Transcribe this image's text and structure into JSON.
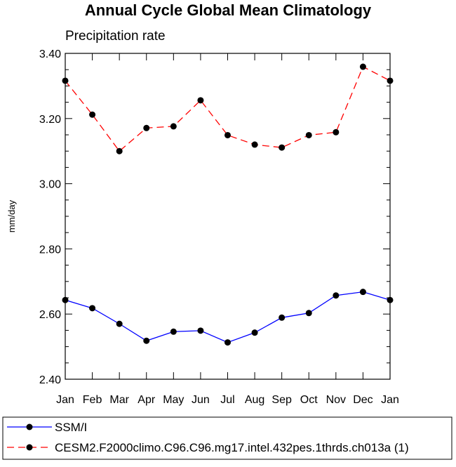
{
  "chart_data": {
    "type": "line",
    "title": "Annual Cycle Global Mean Climatology",
    "subtitle": "Precipitation rate",
    "xlabel": "",
    "ylabel": "mm/day",
    "categories": [
      "Jan",
      "Feb",
      "Mar",
      "Apr",
      "May",
      "Jun",
      "Jul",
      "Aug",
      "Sep",
      "Oct",
      "Nov",
      "Dec",
      "Jan"
    ],
    "ylim": [
      2.4,
      3.4
    ],
    "yticks": [
      "2.40",
      "2.60",
      "2.80",
      "3.00",
      "3.20",
      "3.40"
    ],
    "ytick_values": [
      2.4,
      2.6,
      2.8,
      3.0,
      3.2,
      3.4
    ],
    "legend_position": "bottom",
    "series": [
      {
        "name": "SSM/I",
        "color": "#0000ff",
        "line_style": "solid",
        "marker": "filled-circle",
        "values": [
          2.643,
          2.618,
          2.57,
          2.518,
          2.546,
          2.549,
          2.513,
          2.543,
          2.589,
          2.603,
          2.657,
          2.668,
          2.643
        ]
      },
      {
        "name": "CESM2.F2000climo.C96.C96.mg17.intel.432pes.1thrds.ch013a (1)",
        "color": "#ff0000",
        "line_style": "dashed",
        "marker": "filled-circle",
        "values": [
          3.316,
          3.212,
          3.1,
          3.171,
          3.176,
          3.256,
          3.149,
          3.12,
          3.111,
          3.149,
          3.158,
          3.359,
          3.316
        ]
      }
    ]
  }
}
